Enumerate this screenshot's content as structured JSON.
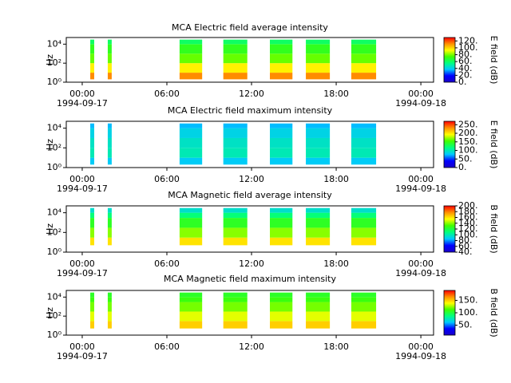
{
  "chart_data": [
    {
      "type": "spectrogram",
      "title": "MCA  Electric field average intensity",
      "ylabel": "Hz",
      "colorbar_label": "E field (dB)",
      "xlim": [
        -1.13,
        24.9
      ],
      "xticks": [
        {
          "value": 0,
          "label": "00:00"
        },
        {
          "value": 6,
          "label": "06:00"
        },
        {
          "value": 12,
          "label": "12:00"
        },
        {
          "value": 18,
          "label": "18:00"
        },
        {
          "value": 24,
          "label": "00:00"
        }
      ],
      "x_date_labels": [
        {
          "value": 0,
          "label": "1994-09-17"
        },
        {
          "value": 24,
          "label": "1994-09-18"
        }
      ],
      "log_y": true,
      "ylim": [
        1,
        50000
      ],
      "yticks": [
        {
          "value": 1,
          "label": "10⁰"
        },
        {
          "value": 100,
          "label": "10²"
        },
        {
          "value": 10000,
          "label": "10⁴"
        }
      ],
      "clim": [
        0,
        130
      ],
      "cticks": [
        {
          "value": 0,
          "label": "0."
        },
        {
          "value": 20,
          "label": "20."
        },
        {
          "value": 40,
          "label": "40."
        },
        {
          "value": 60,
          "label": "60."
        },
        {
          "value": 80,
          "label": "80."
        },
        {
          "value": 100,
          "label": "100."
        },
        {
          "value": 120,
          "label": "120."
        }
      ],
      "colormap": [
        "#1a00c8",
        "#0000ff",
        "#00c8ff",
        "#00ff80",
        "#40ff00",
        "#ffff00",
        "#ff9000",
        "#ff0000"
      ],
      "intervals": [
        [
          0.57,
          0.85
        ],
        [
          1.81,
          2.09
        ],
        [
          6.9,
          8.5
        ],
        [
          10.0,
          11.7
        ],
        [
          13.3,
          14.9
        ],
        [
          15.85,
          17.55
        ],
        [
          19.07,
          20.83
        ]
      ],
      "freq_bins": [
        2,
        10,
        100,
        1000,
        10000,
        30000
      ],
      "values": [
        112,
        95,
        78,
        70,
        60
      ]
    },
    {
      "type": "spectrogram",
      "title": "MCA  Electric field maximum intensity",
      "ylabel": "Hz",
      "colorbar_label": "E field (dB)",
      "xlim": [
        -1.13,
        24.9
      ],
      "xticks": [
        {
          "value": 0,
          "label": "00:00"
        },
        {
          "value": 6,
          "label": "06:00"
        },
        {
          "value": 12,
          "label": "12:00"
        },
        {
          "value": 18,
          "label": "18:00"
        },
        {
          "value": 24,
          "label": "00:00"
        }
      ],
      "x_date_labels": [
        {
          "value": 0,
          "label": "1994-09-17"
        },
        {
          "value": 24,
          "label": "1994-09-18"
        }
      ],
      "log_y": true,
      "ylim": [
        1,
        50000
      ],
      "yticks": [
        {
          "value": 1,
          "label": "10⁰"
        },
        {
          "value": 100,
          "label": "10²"
        },
        {
          "value": 10000,
          "label": "10⁴"
        }
      ],
      "clim": [
        0,
        270
      ],
      "cticks": [
        {
          "value": 0,
          "label": "0."
        },
        {
          "value": 50,
          "label": "50."
        },
        {
          "value": 100,
          "label": "100."
        },
        {
          "value": 150,
          "label": "150."
        },
        {
          "value": 200,
          "label": "200."
        },
        {
          "value": 250,
          "label": "250."
        }
      ],
      "colormap": [
        "#1a00c8",
        "#0000ff",
        "#00c8ff",
        "#00ff80",
        "#40ff00",
        "#ffff00",
        "#ff9000",
        "#ff0000"
      ],
      "intervals": [
        [
          0.57,
          0.85
        ],
        [
          1.81,
          2.09
        ],
        [
          6.9,
          8.5
        ],
        [
          10.0,
          11.7
        ],
        [
          13.3,
          14.9
        ],
        [
          15.85,
          17.55
        ],
        [
          19.07,
          20.83
        ]
      ],
      "freq_bins": [
        2,
        10,
        100,
        1000,
        10000,
        30000
      ],
      "values": [
        80,
        100,
        95,
        85,
        75
      ]
    },
    {
      "type": "spectrogram",
      "title": "MCA  Magnetic field average intensity",
      "ylabel": "Hz",
      "colorbar_label": "B field (dB)",
      "xlim": [
        -1.13,
        24.9
      ],
      "xticks": [
        {
          "value": 0,
          "label": "00:00"
        },
        {
          "value": 6,
          "label": "06:00"
        },
        {
          "value": 12,
          "label": "12:00"
        },
        {
          "value": 18,
          "label": "18:00"
        },
        {
          "value": 24,
          "label": "00:00"
        }
      ],
      "x_date_labels": [
        {
          "value": 0,
          "label": "1994-09-17"
        },
        {
          "value": 24,
          "label": "1994-09-18"
        }
      ],
      "log_y": true,
      "ylim": [
        1,
        50000
      ],
      "yticks": [
        {
          "value": 1,
          "label": "10⁰"
        },
        {
          "value": 100,
          "label": "10²"
        },
        {
          "value": 10000,
          "label": "10⁴"
        }
      ],
      "clim": [
        40,
        200
      ],
      "cticks": [
        {
          "value": 40,
          "label": "40."
        },
        {
          "value": 60,
          "label": "60."
        },
        {
          "value": 80,
          "label": "80."
        },
        {
          "value": 100,
          "label": "100."
        },
        {
          "value": 120,
          "label": "120."
        },
        {
          "value": 140,
          "label": "140."
        },
        {
          "value": 160,
          "label": "160."
        },
        {
          "value": 180,
          "label": "180."
        },
        {
          "value": 200,
          "label": "200."
        }
      ],
      "colormap": [
        "#1a00c8",
        "#0000ff",
        "#00c8ff",
        "#00ff80",
        "#40ff00",
        "#ffff00",
        "#ff9000",
        "#ff0000"
      ],
      "intervals": [
        [
          0.57,
          0.85
        ],
        [
          1.81,
          2.09
        ],
        [
          6.9,
          8.5
        ],
        [
          10.0,
          11.7
        ],
        [
          13.3,
          14.9
        ],
        [
          15.85,
          17.55
        ],
        [
          19.07,
          20.83
        ]
      ],
      "freq_bins": [
        5,
        30,
        300,
        3000,
        10000,
        30000
      ],
      "values": [
        160,
        140,
        125,
        110,
        95
      ]
    },
    {
      "type": "spectrogram",
      "title": "MCA  Magnetic field maximum intensity",
      "ylabel": "Hz",
      "colorbar_label": "B field (dB)",
      "xlim": [
        -1.13,
        24.9
      ],
      "xticks": [
        {
          "value": 0,
          "label": "00:00"
        },
        {
          "value": 6,
          "label": "06:00"
        },
        {
          "value": 12,
          "label": "12:00"
        },
        {
          "value": 18,
          "label": "18:00"
        },
        {
          "value": 24,
          "label": "00:00"
        }
      ],
      "x_date_labels": [
        {
          "value": 0,
          "label": "1994-09-17"
        },
        {
          "value": 24,
          "label": "1994-09-18"
        }
      ],
      "log_y": true,
      "ylim": [
        1,
        50000
      ],
      "yticks": [
        {
          "value": 1,
          "label": "10⁰"
        },
        {
          "value": 100,
          "label": "10²"
        },
        {
          "value": 10000,
          "label": "10⁴"
        }
      ],
      "clim": [
        10,
        190
      ],
      "cticks": [
        {
          "value": 50,
          "label": "50."
        },
        {
          "value": 100,
          "label": "100."
        },
        {
          "value": 150,
          "label": "150."
        }
      ],
      "colormap": [
        "#1a00c8",
        "#0000ff",
        "#00c8ff",
        "#00ff80",
        "#40ff00",
        "#ffff00",
        "#ff9000",
        "#ff0000"
      ],
      "intervals": [
        [
          0.57,
          0.85
        ],
        [
          1.81,
          2.09
        ],
        [
          6.9,
          8.5
        ],
        [
          10.0,
          11.7
        ],
        [
          13.3,
          14.9
        ],
        [
          15.85,
          17.55
        ],
        [
          19.07,
          20.83
        ]
      ],
      "freq_bins": [
        5,
        30,
        300,
        3000,
        10000,
        30000
      ],
      "values": [
        150,
        135,
        120,
        110,
        105
      ]
    }
  ]
}
